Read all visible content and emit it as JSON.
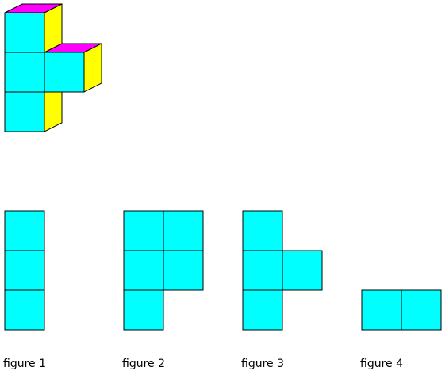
{
  "colors": {
    "front": "#00ffff",
    "top": "#ff00ff",
    "side": "#ffff00",
    "stroke": "#000000"
  },
  "figures": [
    {
      "label": "figure 1"
    },
    {
      "label": "figure 2"
    },
    {
      "label": "figure 3"
    },
    {
      "label": "figure 4"
    }
  ]
}
